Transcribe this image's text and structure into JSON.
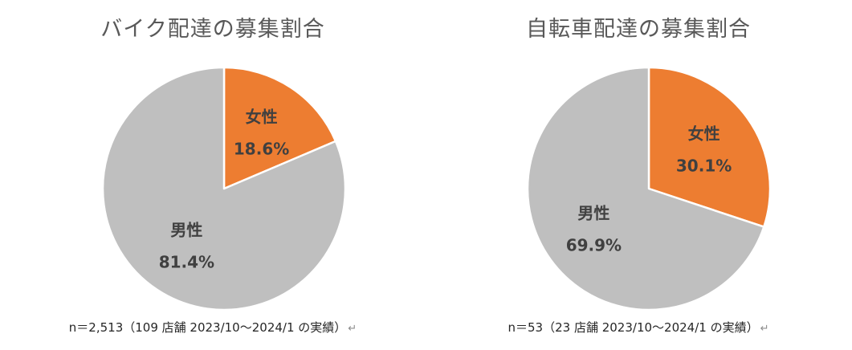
{
  "chart_data": [
    {
      "type": "pie",
      "title": "バイク配達の募集割合",
      "slices": [
        {
          "label": "女性",
          "value": 18.6,
          "value_label": "18.6%",
          "color": "#ED7D31"
        },
        {
          "label": "男性",
          "value": 81.4,
          "value_label": "81.4%",
          "color": "#BFBFBF"
        }
      ],
      "note": "n＝2,513（109 店舗 2023/10～2024/1 の実績）"
    },
    {
      "type": "pie",
      "title": "自転車配達の募集割合",
      "slices": [
        {
          "label": "女性",
          "value": 30.1,
          "value_label": "30.1%",
          "color": "#ED7D31"
        },
        {
          "label": "男性",
          "value": 69.9,
          "value_label": "69.9%",
          "color": "#BFBFBF"
        }
      ],
      "note": "n＝53（23 店舗 2023/10～2024/1 の実績）"
    }
  ],
  "return_mark": "↵"
}
